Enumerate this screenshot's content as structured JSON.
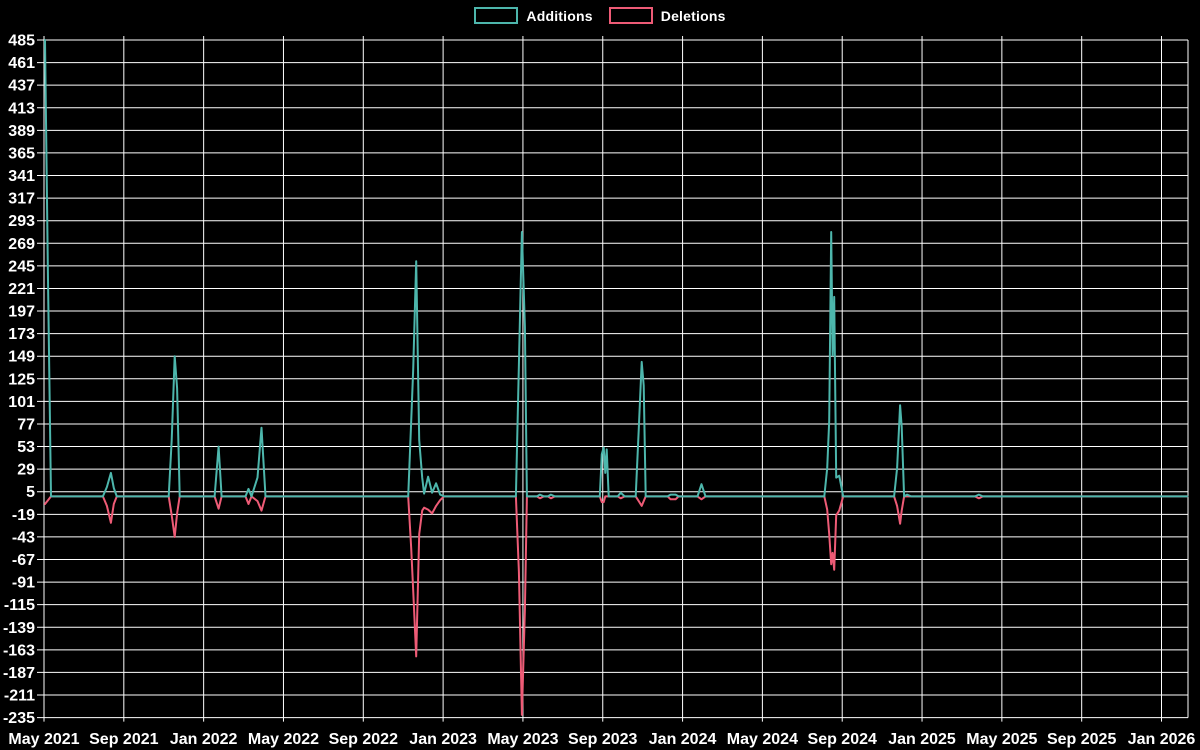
{
  "legend": {
    "items": [
      {
        "label": "Additions",
        "color": "#4db6ac"
      },
      {
        "label": "Deletions",
        "color": "#ee5b76"
      }
    ]
  },
  "chart_data": {
    "type": "line",
    "title": "",
    "background_color": "#000000",
    "grid": true,
    "grid_color": "#ffffff",
    "text_color": "#ffffff",
    "legend_position": "top-center",
    "x_unit": "months since May 2021 (4-month tick spacing)",
    "ylim": [
      -235,
      485
    ],
    "y_ticks": [
      485,
      461,
      437,
      413,
      389,
      365,
      341,
      317,
      293,
      269,
      245,
      221,
      197,
      173,
      149,
      125,
      101,
      77,
      53,
      29,
      5,
      -19,
      -43,
      -67,
      -91,
      -115,
      -139,
      -163,
      -187,
      -211,
      -235
    ],
    "x_tick_labels": [
      "May 2021",
      "Sep 2021",
      "Jan 2022",
      "May 2022",
      "Sep 2022",
      "Jan 2023",
      "May 2023",
      "Sep 2023",
      "Jan 2024",
      "May 2024",
      "Sep 2024",
      "Jan 2025",
      "May 2025",
      "Sep 2025",
      "Jan 2026"
    ],
    "x_tick_months": [
      0,
      4,
      8,
      12,
      16,
      20,
      24,
      28,
      32,
      36,
      40,
      44,
      48,
      52,
      56
    ],
    "series": [
      {
        "name": "Additions",
        "color": "#4db6ac",
        "points": [
          [
            0.05,
            485
          ],
          [
            0.2,
            230
          ],
          [
            0.35,
            0
          ],
          [
            2.95,
            0
          ],
          [
            3.15,
            10
          ],
          [
            3.35,
            25
          ],
          [
            3.5,
            9
          ],
          [
            3.65,
            0
          ],
          [
            6.25,
            0
          ],
          [
            6.4,
            60
          ],
          [
            6.55,
            149
          ],
          [
            6.67,
            115
          ],
          [
            6.8,
            0
          ],
          [
            8.55,
            0
          ],
          [
            8.75,
            53
          ],
          [
            8.9,
            0
          ],
          [
            10.1,
            0
          ],
          [
            10.25,
            8
          ],
          [
            10.4,
            0
          ],
          [
            10.7,
            20
          ],
          [
            10.9,
            73
          ],
          [
            11.1,
            0
          ],
          [
            18.25,
            0
          ],
          [
            18.4,
            80
          ],
          [
            18.5,
            135
          ],
          [
            18.65,
            250
          ],
          [
            18.8,
            60
          ],
          [
            18.95,
            20
          ],
          [
            19.05,
            3
          ],
          [
            19.25,
            21
          ],
          [
            19.45,
            4
          ],
          [
            19.65,
            14
          ],
          [
            19.85,
            2
          ],
          [
            20.05,
            0
          ],
          [
            23.65,
            0
          ],
          [
            23.8,
            140
          ],
          [
            23.95,
            281
          ],
          [
            24.1,
            180
          ],
          [
            24.2,
            0
          ],
          [
            24.7,
            0
          ],
          [
            24.85,
            2
          ],
          [
            25.05,
            0
          ],
          [
            25.25,
            0
          ],
          [
            25.4,
            2
          ],
          [
            25.6,
            0
          ],
          [
            27.85,
            0
          ],
          [
            27.95,
            45
          ],
          [
            28.05,
            52
          ],
          [
            28.13,
            25
          ],
          [
            28.2,
            50
          ],
          [
            28.3,
            0
          ],
          [
            28.75,
            0
          ],
          [
            28.9,
            4
          ],
          [
            29.1,
            0
          ],
          [
            29.65,
            0
          ],
          [
            29.8,
            70
          ],
          [
            29.95,
            143
          ],
          [
            30.05,
            118
          ],
          [
            30.15,
            0
          ],
          [
            31.25,
            0
          ],
          [
            31.4,
            2
          ],
          [
            31.65,
            2
          ],
          [
            31.8,
            0
          ],
          [
            32.75,
            0
          ],
          [
            32.95,
            13
          ],
          [
            33.15,
            0
          ],
          [
            39.1,
            0
          ],
          [
            39.25,
            30
          ],
          [
            39.35,
            80
          ],
          [
            39.45,
            281
          ],
          [
            39.52,
            150
          ],
          [
            39.6,
            212
          ],
          [
            39.7,
            20
          ],
          [
            39.85,
            22
          ],
          [
            40.05,
            0
          ],
          [
            42.6,
            0
          ],
          [
            42.75,
            30
          ],
          [
            42.9,
            97
          ],
          [
            42.98,
            74
          ],
          [
            43.1,
            0
          ],
          [
            43.25,
            2
          ],
          [
            43.45,
            0
          ],
          [
            46.65,
            0
          ],
          [
            46.85,
            2
          ],
          [
            47.05,
            0
          ],
          [
            57.3,
            0
          ]
        ]
      },
      {
        "name": "Deletions",
        "color": "#ee5b76",
        "points": [
          [
            0.05,
            -8
          ],
          [
            0.2,
            -4
          ],
          [
            0.35,
            0
          ],
          [
            2.95,
            0
          ],
          [
            3.15,
            -10
          ],
          [
            3.35,
            -28
          ],
          [
            3.5,
            -8
          ],
          [
            3.65,
            0
          ],
          [
            6.25,
            0
          ],
          [
            6.4,
            -20
          ],
          [
            6.55,
            -43
          ],
          [
            6.67,
            -18
          ],
          [
            6.8,
            0
          ],
          [
            8.55,
            0
          ],
          [
            8.75,
            -13
          ],
          [
            8.9,
            0
          ],
          [
            10.1,
            0
          ],
          [
            10.25,
            -8
          ],
          [
            10.4,
            0
          ],
          [
            10.7,
            -5
          ],
          [
            10.9,
            -15
          ],
          [
            11.1,
            0
          ],
          [
            18.25,
            0
          ],
          [
            18.4,
            -55
          ],
          [
            18.5,
            -100
          ],
          [
            18.65,
            -170
          ],
          [
            18.8,
            -40
          ],
          [
            18.95,
            -15
          ],
          [
            19.05,
            -12
          ],
          [
            19.25,
            -14
          ],
          [
            19.45,
            -18
          ],
          [
            19.65,
            -10
          ],
          [
            19.85,
            -4
          ],
          [
            20.05,
            0
          ],
          [
            23.65,
            0
          ],
          [
            23.8,
            -80
          ],
          [
            23.95,
            -232
          ],
          [
            24.1,
            -120
          ],
          [
            24.2,
            0
          ],
          [
            24.7,
            0
          ],
          [
            24.85,
            -2
          ],
          [
            25.05,
            0
          ],
          [
            25.25,
            0
          ],
          [
            25.4,
            -2
          ],
          [
            25.6,
            0
          ],
          [
            27.85,
            0
          ],
          [
            27.95,
            -6
          ],
          [
            28.05,
            -6
          ],
          [
            28.13,
            0
          ],
          [
            28.2,
            0
          ],
          [
            28.3,
            0
          ],
          [
            28.75,
            0
          ],
          [
            28.9,
            -2
          ],
          [
            29.1,
            0
          ],
          [
            29.65,
            0
          ],
          [
            29.8,
            -5
          ],
          [
            29.95,
            -10
          ],
          [
            30.05,
            -5
          ],
          [
            30.15,
            0
          ],
          [
            31.25,
            0
          ],
          [
            31.4,
            -3
          ],
          [
            31.65,
            -3
          ],
          [
            31.8,
            0
          ],
          [
            32.75,
            0
          ],
          [
            32.95,
            -3
          ],
          [
            33.15,
            0
          ],
          [
            39.1,
            0
          ],
          [
            39.25,
            -14
          ],
          [
            39.35,
            -40
          ],
          [
            39.45,
            -72
          ],
          [
            39.52,
            -60
          ],
          [
            39.6,
            -78
          ],
          [
            39.7,
            -20
          ],
          [
            39.85,
            -15
          ],
          [
            40.05,
            0
          ],
          [
            42.6,
            0
          ],
          [
            42.75,
            -10
          ],
          [
            42.9,
            -29
          ],
          [
            42.98,
            -15
          ],
          [
            43.1,
            0
          ],
          [
            43.25,
            0
          ],
          [
            43.45,
            0
          ],
          [
            46.65,
            0
          ],
          [
            46.85,
            -2
          ],
          [
            47.05,
            0
          ],
          [
            57.3,
            0
          ]
        ]
      }
    ]
  }
}
